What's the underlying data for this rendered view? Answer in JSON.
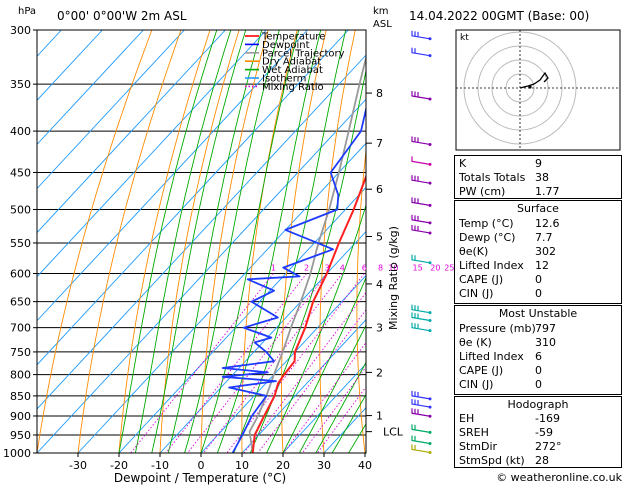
{
  "header": {
    "hpa": "hPa",
    "location": "0°00' 0°00'W 2m ASL",
    "km_unit": "km",
    "asl_unit": "ASL",
    "datetime": "14.04.2022 00GMT (Base: 00)"
  },
  "legend": [
    {
      "label": "Temperature",
      "color": "#ff0000"
    },
    {
      "label": "Dewpoint",
      "color": "#0000ff"
    },
    {
      "label": "Parcel Trajectory",
      "color": "#999999"
    },
    {
      "label": "Dry Adiabat",
      "color": "#ff8c00"
    },
    {
      "label": "Wet Adiabat",
      "color": "#00aa00"
    },
    {
      "label": "Isotherm",
      "color": "#1e9bff"
    },
    {
      "label": "Mixing Ratio",
      "color": "#dd00dd"
    }
  ],
  "axes": {
    "xlabel": "Dewpoint / Temperature (°C)",
    "mixing_label": "Mixing Ratio (g/kg)",
    "lcl_label": "LCL"
  },
  "chart_data": {
    "type": "skew-t",
    "pressure_levels": [
      300,
      350,
      400,
      450,
      500,
      550,
      600,
      650,
      700,
      750,
      800,
      850,
      900,
      950,
      1000
    ],
    "x_ticks": [
      -30,
      -20,
      -10,
      0,
      10,
      20,
      30,
      40
    ],
    "xlim": [
      -40,
      40
    ],
    "height_ticks": [
      {
        "km": "8",
        "p": 359
      },
      {
        "km": "7",
        "p": 414
      },
      {
        "km": "6",
        "p": 472
      },
      {
        "km": "5",
        "p": 540
      },
      {
        "km": "4",
        "p": 618
      },
      {
        "km": "3",
        "p": 700
      },
      {
        "km": "2",
        "p": 795
      },
      {
        "km": "1",
        "p": 899
      },
      {
        "km": "LCL",
        "p": 941
      }
    ],
    "mixing_ratio_labels": [
      "1",
      "2",
      "3",
      "4",
      "6",
      "8",
      "10",
      "15",
      "20",
      "25"
    ],
    "temperature": [
      [
        1000,
        12.6
      ],
      [
        950,
        9
      ],
      [
        900,
        7
      ],
      [
        850,
        5
      ],
      [
        820,
        3
      ],
      [
        800,
        2.5
      ],
      [
        770,
        2
      ],
      [
        750,
        0
      ],
      [
        700,
        -3
      ],
      [
        650,
        -7
      ],
      [
        600,
        -10
      ],
      [
        550,
        -14
      ],
      [
        500,
        -18
      ],
      [
        450,
        -23
      ],
      [
        400,
        -30
      ],
      [
        350,
        -36
      ],
      [
        300,
        -44
      ]
    ],
    "dewpoint": [
      [
        1000,
        7.7
      ],
      [
        950,
        6
      ],
      [
        900,
        4
      ],
      [
        850,
        3
      ],
      [
        830,
        -8
      ],
      [
        815,
        2
      ],
      [
        805,
        -12
      ],
      [
        795,
        -2
      ],
      [
        785,
        -14
      ],
      [
        770,
        -3
      ],
      [
        750,
        -7
      ],
      [
        730,
        -12
      ],
      [
        720,
        -9
      ],
      [
        700,
        -18
      ],
      [
        680,
        -12
      ],
      [
        650,
        -22
      ],
      [
        630,
        -19
      ],
      [
        610,
        -28
      ],
      [
        605,
        -16
      ],
      [
        590,
        -22
      ],
      [
        560,
        -14
      ],
      [
        530,
        -30
      ],
      [
        500,
        -22
      ],
      [
        480,
        -25
      ],
      [
        450,
        -32
      ],
      [
        400,
        -34
      ],
      [
        350,
        -42
      ],
      [
        300,
        -50
      ]
    ],
    "parcel": [
      [
        1000,
        12.6
      ],
      [
        941,
        7
      ],
      [
        900,
        5.5
      ],
      [
        850,
        3
      ],
      [
        800,
        0
      ],
      [
        750,
        -3
      ],
      [
        700,
        -6.5
      ],
      [
        650,
        -10
      ],
      [
        600,
        -14
      ],
      [
        550,
        -19
      ],
      [
        500,
        -24
      ],
      [
        450,
        -30
      ],
      [
        400,
        -37
      ],
      [
        350,
        -45
      ],
      [
        300,
        -54
      ]
    ]
  },
  "hodograph": {
    "unit": "kt"
  },
  "indices": [
    {
      "k": "K",
      "v": "9"
    },
    {
      "k": "Totals Totals",
      "v": "38"
    },
    {
      "k": "PW (cm)",
      "v": "1.77"
    }
  ],
  "surface": {
    "title": "Surface",
    "rows": [
      {
        "k": "Temp (°C)",
        "v": "12.6"
      },
      {
        "k": "Dewp (°C)",
        "v": "7.7"
      },
      {
        "k": "θe(K)",
        "v": "302"
      },
      {
        "k": "Lifted Index",
        "v": "12"
      },
      {
        "k": "CAPE (J)",
        "v": "0"
      },
      {
        "k": "CIN (J)",
        "v": "0"
      }
    ]
  },
  "most_unstable": {
    "title": "Most Unstable",
    "rows": [
      {
        "k": "Pressure (mb)",
        "v": "797"
      },
      {
        "k": "θe (K)",
        "v": "310"
      },
      {
        "k": "Lifted Index",
        "v": "6"
      },
      {
        "k": "CAPE (J)",
        "v": "0"
      },
      {
        "k": "CIN (J)",
        "v": "0"
      }
    ]
  },
  "hodograph_table": {
    "title": "Hodograph",
    "rows": [
      {
        "k": "EH",
        "v": "-169"
      },
      {
        "k": "SREH",
        "v": "-59"
      },
      {
        "k": "StmDir",
        "v": "272°"
      },
      {
        "k": "StmSpd (kt)",
        "v": "28"
      }
    ]
  },
  "copyright": "© weatheronline.co.uk"
}
